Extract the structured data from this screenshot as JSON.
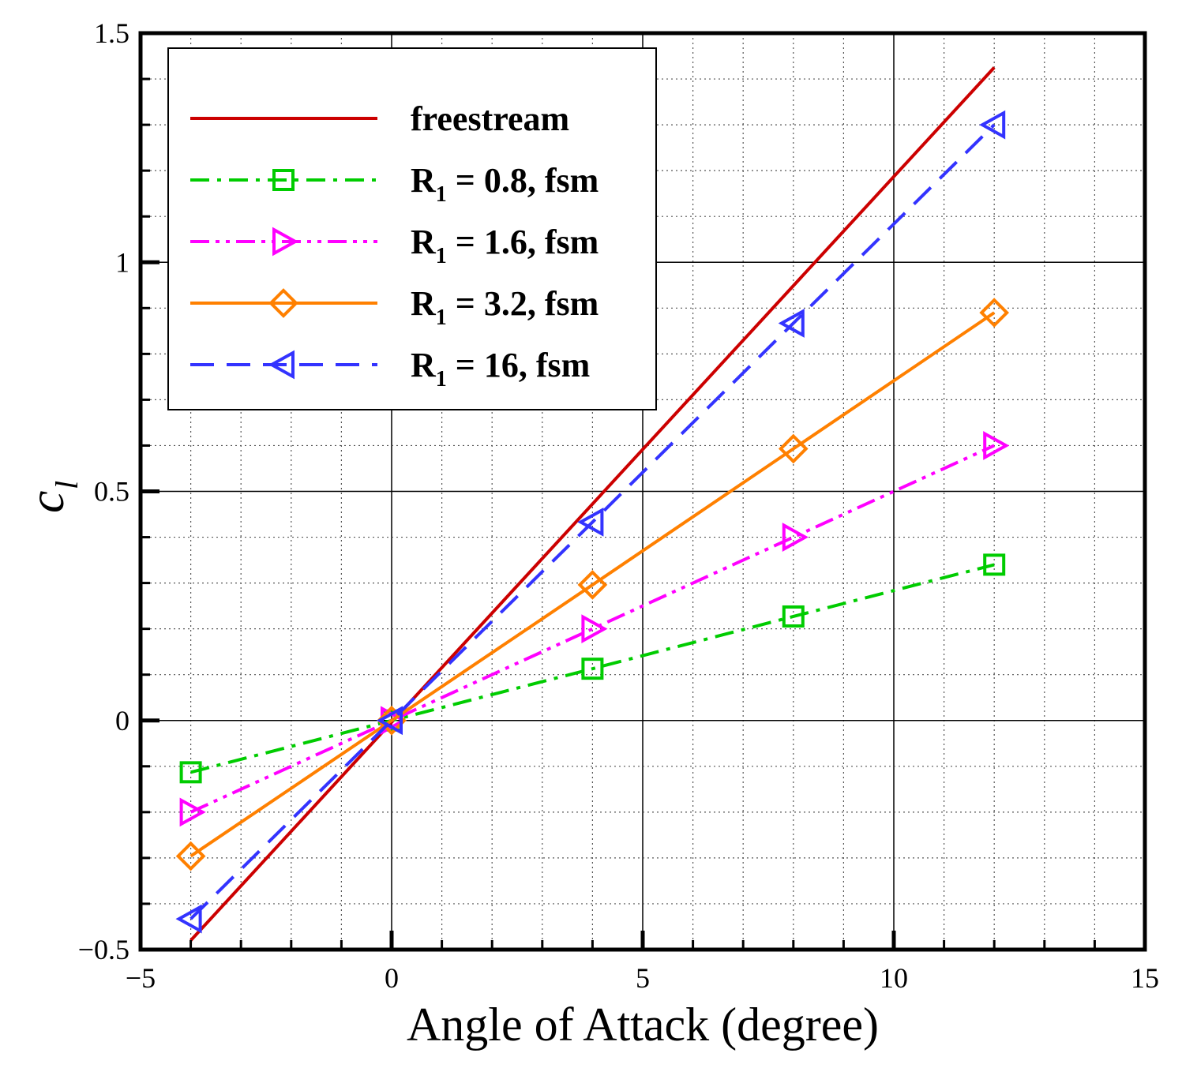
{
  "chart_data": {
    "type": "line",
    "xlabel": "Angle of Attack (degree)",
    "ylabel": {
      "symbol": "c",
      "subscript": "l"
    },
    "xlim": [
      -5,
      15
    ],
    "ylim": [
      -0.5,
      1.5
    ],
    "x_ticks": [
      {
        "value": -5,
        "label": "−5"
      },
      {
        "value": 0,
        "label": "0"
      },
      {
        "value": 5,
        "label": "5"
      },
      {
        "value": 10,
        "label": "10"
      },
      {
        "value": 15,
        "label": "15"
      }
    ],
    "y_ticks": [
      {
        "value": -0.5,
        "label": "−0.5"
      },
      {
        "value": 0,
        "label": "0"
      },
      {
        "value": 0.5,
        "label": "0.5"
      },
      {
        "value": 1,
        "label": "1"
      },
      {
        "value": 1.5,
        "label": "1.5"
      }
    ],
    "grid": {
      "major": true,
      "minor": true,
      "minor_style": "dotted"
    },
    "legend": {
      "position": "top-left",
      "boxed": true
    },
    "series": [
      {
        "name": "freestream",
        "legend_parts": [
          "freestream"
        ],
        "color": "#cc0000",
        "dash": "solid",
        "marker": "none",
        "x": [
          -4,
          12
        ],
        "y": [
          -0.48,
          1.425
        ]
      },
      {
        "name": "R1 = 0.8, fsm",
        "legend_parts": [
          "R",
          "1",
          " = 0.8, fsm"
        ],
        "color": "#00cc00",
        "dash": "dashdot",
        "marker": "square",
        "x": [
          -4,
          0,
          4,
          8,
          12
        ],
        "y": [
          -0.113,
          0.0,
          0.113,
          0.227,
          0.34
        ]
      },
      {
        "name": "R1 = 1.6, fsm",
        "legend_parts": [
          "R",
          "1",
          " = 1.6, fsm"
        ],
        "color": "#ff00ff",
        "dash": "dashdotdot",
        "marker": "triangle-right",
        "x": [
          -4,
          0,
          4,
          8,
          12
        ],
        "y": [
          -0.2,
          0.0,
          0.2,
          0.4,
          0.6
        ]
      },
      {
        "name": "R1 = 3.2, fsm",
        "legend_parts": [
          "R",
          "1",
          " = 3.2, fsm"
        ],
        "color": "#ff8000",
        "dash": "solid",
        "marker": "diamond",
        "x": [
          -4,
          0,
          4,
          8,
          12
        ],
        "y": [
          -0.296,
          0.0,
          0.296,
          0.593,
          0.89
        ]
      },
      {
        "name": "R1 = 16, fsm",
        "legend_parts": [
          "R",
          "1",
          " = 16, fsm"
        ],
        "color": "#3333ff",
        "dash": "dashed",
        "marker": "triangle-left",
        "x": [
          -4,
          0,
          4,
          8,
          12
        ],
        "y": [
          -0.433,
          0.0,
          0.433,
          0.867,
          1.3
        ]
      }
    ]
  }
}
